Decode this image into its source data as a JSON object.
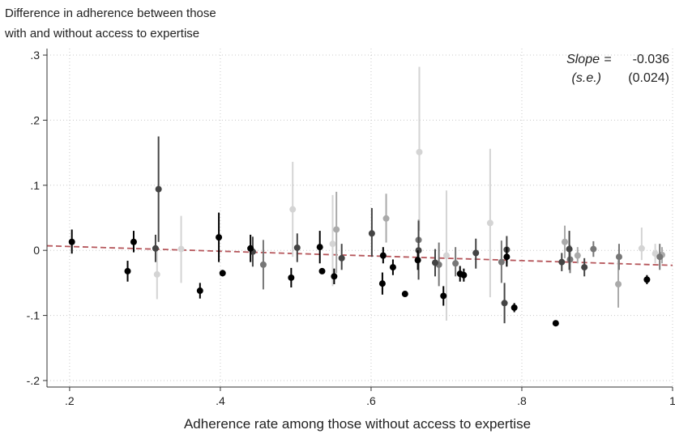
{
  "chart_data": {
    "type": "scatter",
    "title": "",
    "ylabel_lines": [
      "Difference in adherence between those",
      "with and without access to expertise"
    ],
    "xlabel": "Adherence rate among those without access to expertise",
    "xlim": [
      0.17,
      1.0
    ],
    "ylim": [
      -0.21,
      0.31
    ],
    "xticks": [
      0.2,
      0.4,
      0.6,
      0.8,
      1.0
    ],
    "xtick_labels": [
      ".2",
      ".4",
      ".6",
      ".8",
      "1"
    ],
    "yticks": [
      -0.2,
      -0.1,
      0.0,
      0.1,
      0.2,
      0.3
    ],
    "ytick_labels": [
      "-.2",
      "-.1",
      "0",
      ".1",
      ".2",
      ".3"
    ],
    "grid": true,
    "legend": "none",
    "fit_line": {
      "x": [
        0.17,
        1.0
      ],
      "y": [
        0.007,
        -0.023
      ],
      "color": "#b5555a",
      "style": "dashed"
    },
    "annotation": {
      "slope_label": "Slope",
      "se_label": "(s.e.)",
      "equals": "=",
      "slope_value": "-0.036",
      "se_value": "(0.024)"
    },
    "colors": {
      "black": "#000000",
      "dark": "#444444",
      "mid": "#777777",
      "light": "#aaaaaa",
      "lighter": "#d4d4d4"
    },
    "points": [
      {
        "x": 0.203,
        "y": 0.013,
        "lo": -0.005,
        "hi": 0.032,
        "c": "black"
      },
      {
        "x": 0.277,
        "y": -0.032,
        "lo": -0.048,
        "hi": -0.016,
        "c": "black"
      },
      {
        "x": 0.285,
        "y": 0.013,
        "lo": -0.003,
        "hi": 0.03,
        "c": "black"
      },
      {
        "x": 0.314,
        "y": 0.003,
        "lo": -0.018,
        "hi": 0.024,
        "c": "dark"
      },
      {
        "x": 0.316,
        "y": -0.037,
        "lo": -0.075,
        "hi": 0.001,
        "c": "lighter"
      },
      {
        "x": 0.318,
        "y": 0.094,
        "lo": 0.013,
        "hi": 0.175,
        "c": "dark"
      },
      {
        "x": 0.348,
        "y": 0.002,
        "lo": -0.05,
        "hi": 0.053,
        "c": "lighter"
      },
      {
        "x": 0.373,
        "y": -0.062,
        "lo": -0.074,
        "hi": -0.05,
        "c": "black"
      },
      {
        "x": 0.398,
        "y": 0.02,
        "lo": -0.018,
        "hi": 0.058,
        "c": "black"
      },
      {
        "x": 0.403,
        "y": -0.035,
        "lo": -0.04,
        "hi": -0.03,
        "c": "black"
      },
      {
        "x": 0.44,
        "y": 0.003,
        "lo": -0.018,
        "hi": 0.024,
        "c": "black"
      },
      {
        "x": 0.443,
        "y": -0.002,
        "lo": -0.025,
        "hi": 0.021,
        "c": "dark"
      },
      {
        "x": 0.457,
        "y": -0.022,
        "lo": -0.06,
        "hi": 0.016,
        "c": "mid"
      },
      {
        "x": 0.494,
        "y": -0.042,
        "lo": -0.057,
        "hi": -0.027,
        "c": "black"
      },
      {
        "x": 0.496,
        "y": 0.063,
        "lo": -0.01,
        "hi": 0.136,
        "c": "lighter"
      },
      {
        "x": 0.502,
        "y": 0.004,
        "lo": -0.018,
        "hi": 0.026,
        "c": "dark"
      },
      {
        "x": 0.532,
        "y": 0.005,
        "lo": -0.02,
        "hi": 0.03,
        "c": "black"
      },
      {
        "x": 0.535,
        "y": -0.032,
        "lo": -0.036,
        "hi": -0.028,
        "c": "black"
      },
      {
        "x": 0.549,
        "y": 0.01,
        "lo": -0.055,
        "hi": 0.085,
        "c": "lighter"
      },
      {
        "x": 0.551,
        "y": -0.04,
        "lo": -0.052,
        "hi": -0.028,
        "c": "black"
      },
      {
        "x": 0.554,
        "y": 0.032,
        "lo": -0.035,
        "hi": 0.09,
        "c": "light"
      },
      {
        "x": 0.561,
        "y": -0.012,
        "lo": -0.03,
        "hi": 0.01,
        "c": "dark"
      },
      {
        "x": 0.601,
        "y": 0.026,
        "lo": -0.01,
        "hi": 0.065,
        "c": "dark"
      },
      {
        "x": 0.615,
        "y": -0.051,
        "lo": -0.068,
        "hi": -0.034,
        "c": "black"
      },
      {
        "x": 0.616,
        "y": -0.008,
        "lo": -0.02,
        "hi": 0.005,
        "c": "black"
      },
      {
        "x": 0.62,
        "y": 0.049,
        "lo": 0.012,
        "hi": 0.087,
        "c": "light"
      },
      {
        "x": 0.629,
        "y": -0.026,
        "lo": -0.038,
        "hi": -0.014,
        "c": "black"
      },
      {
        "x": 0.645,
        "y": -0.067,
        "lo": -0.071,
        "hi": -0.063,
        "c": "black"
      },
      {
        "x": 0.664,
        "y": 0.151,
        "lo": 0.03,
        "hi": 0.282,
        "c": "lighter"
      },
      {
        "x": 0.663,
        "y": 0.016,
        "lo": -0.015,
        "hi": 0.047,
        "c": "mid"
      },
      {
        "x": 0.663,
        "y": 0.0,
        "lo": -0.045,
        "hi": 0.045,
        "c": "dark"
      },
      {
        "x": 0.662,
        "y": -0.015,
        "lo": -0.03,
        "hi": 0.0,
        "c": "black"
      },
      {
        "x": 0.685,
        "y": -0.019,
        "lo": -0.04,
        "hi": 0.002,
        "c": "dark"
      },
      {
        "x": 0.69,
        "y": -0.022,
        "lo": -0.055,
        "hi": 0.012,
        "c": "mid"
      },
      {
        "x": 0.696,
        "y": -0.07,
        "lo": -0.085,
        "hi": -0.055,
        "c": "black"
      },
      {
        "x": 0.7,
        "y": -0.008,
        "lo": -0.108,
        "hi": 0.092,
        "c": "lighter"
      },
      {
        "x": 0.712,
        "y": -0.02,
        "lo": -0.04,
        "hi": 0.005,
        "c": "mid"
      },
      {
        "x": 0.718,
        "y": -0.036,
        "lo": -0.048,
        "hi": -0.024,
        "c": "black"
      },
      {
        "x": 0.723,
        "y": -0.038,
        "lo": -0.048,
        "hi": -0.028,
        "c": "black"
      },
      {
        "x": 0.739,
        "y": -0.004,
        "lo": -0.028,
        "hi": 0.018,
        "c": "dark"
      },
      {
        "x": 0.758,
        "y": 0.042,
        "lo": -0.072,
        "hi": 0.156,
        "c": "lighter"
      },
      {
        "x": 0.773,
        "y": -0.018,
        "lo": -0.05,
        "hi": 0.015,
        "c": "mid"
      },
      {
        "x": 0.777,
        "y": -0.081,
        "lo": -0.112,
        "hi": -0.05,
        "c": "dark"
      },
      {
        "x": 0.78,
        "y": 0.001,
        "lo": -0.02,
        "hi": 0.022,
        "c": "dark"
      },
      {
        "x": 0.78,
        "y": -0.01,
        "lo": -0.025,
        "hi": 0.005,
        "c": "black"
      },
      {
        "x": 0.79,
        "y": -0.088,
        "lo": -0.095,
        "hi": -0.081,
        "c": "black"
      },
      {
        "x": 0.845,
        "y": -0.112,
        "lo": -0.116,
        "hi": -0.108,
        "c": "black"
      },
      {
        "x": 0.853,
        "y": -0.018,
        "lo": -0.032,
        "hi": -0.004,
        "c": "dark"
      },
      {
        "x": 0.857,
        "y": 0.013,
        "lo": -0.012,
        "hi": 0.038,
        "c": "light"
      },
      {
        "x": 0.863,
        "y": 0.002,
        "lo": -0.03,
        "hi": 0.03,
        "c": "dark"
      },
      {
        "x": 0.864,
        "y": -0.014,
        "lo": -0.035,
        "hi": 0.008,
        "c": "mid"
      },
      {
        "x": 0.874,
        "y": -0.008,
        "lo": -0.02,
        "hi": 0.005,
        "c": "light"
      },
      {
        "x": 0.883,
        "y": -0.026,
        "lo": -0.04,
        "hi": -0.012,
        "c": "dark"
      },
      {
        "x": 0.895,
        "y": 0.002,
        "lo": -0.01,
        "hi": 0.014,
        "c": "mid"
      },
      {
        "x": 0.928,
        "y": -0.052,
        "lo": -0.088,
        "hi": -0.015,
        "c": "light"
      },
      {
        "x": 0.929,
        "y": -0.01,
        "lo": -0.03,
        "hi": 0.01,
        "c": "mid"
      },
      {
        "x": 0.959,
        "y": 0.003,
        "lo": -0.015,
        "hi": 0.035,
        "c": "lighter"
      },
      {
        "x": 0.966,
        "y": -0.045,
        "lo": -0.052,
        "hi": -0.038,
        "c": "black"
      },
      {
        "x": 0.977,
        "y": -0.005,
        "lo": -0.02,
        "hi": 0.01,
        "c": "lighter"
      },
      {
        "x": 0.983,
        "y": -0.01,
        "lo": -0.03,
        "hi": 0.01,
        "c": "mid"
      },
      {
        "x": 0.986,
        "y": -0.007,
        "lo": -0.02,
        "hi": 0.005,
        "c": "light"
      }
    ]
  }
}
